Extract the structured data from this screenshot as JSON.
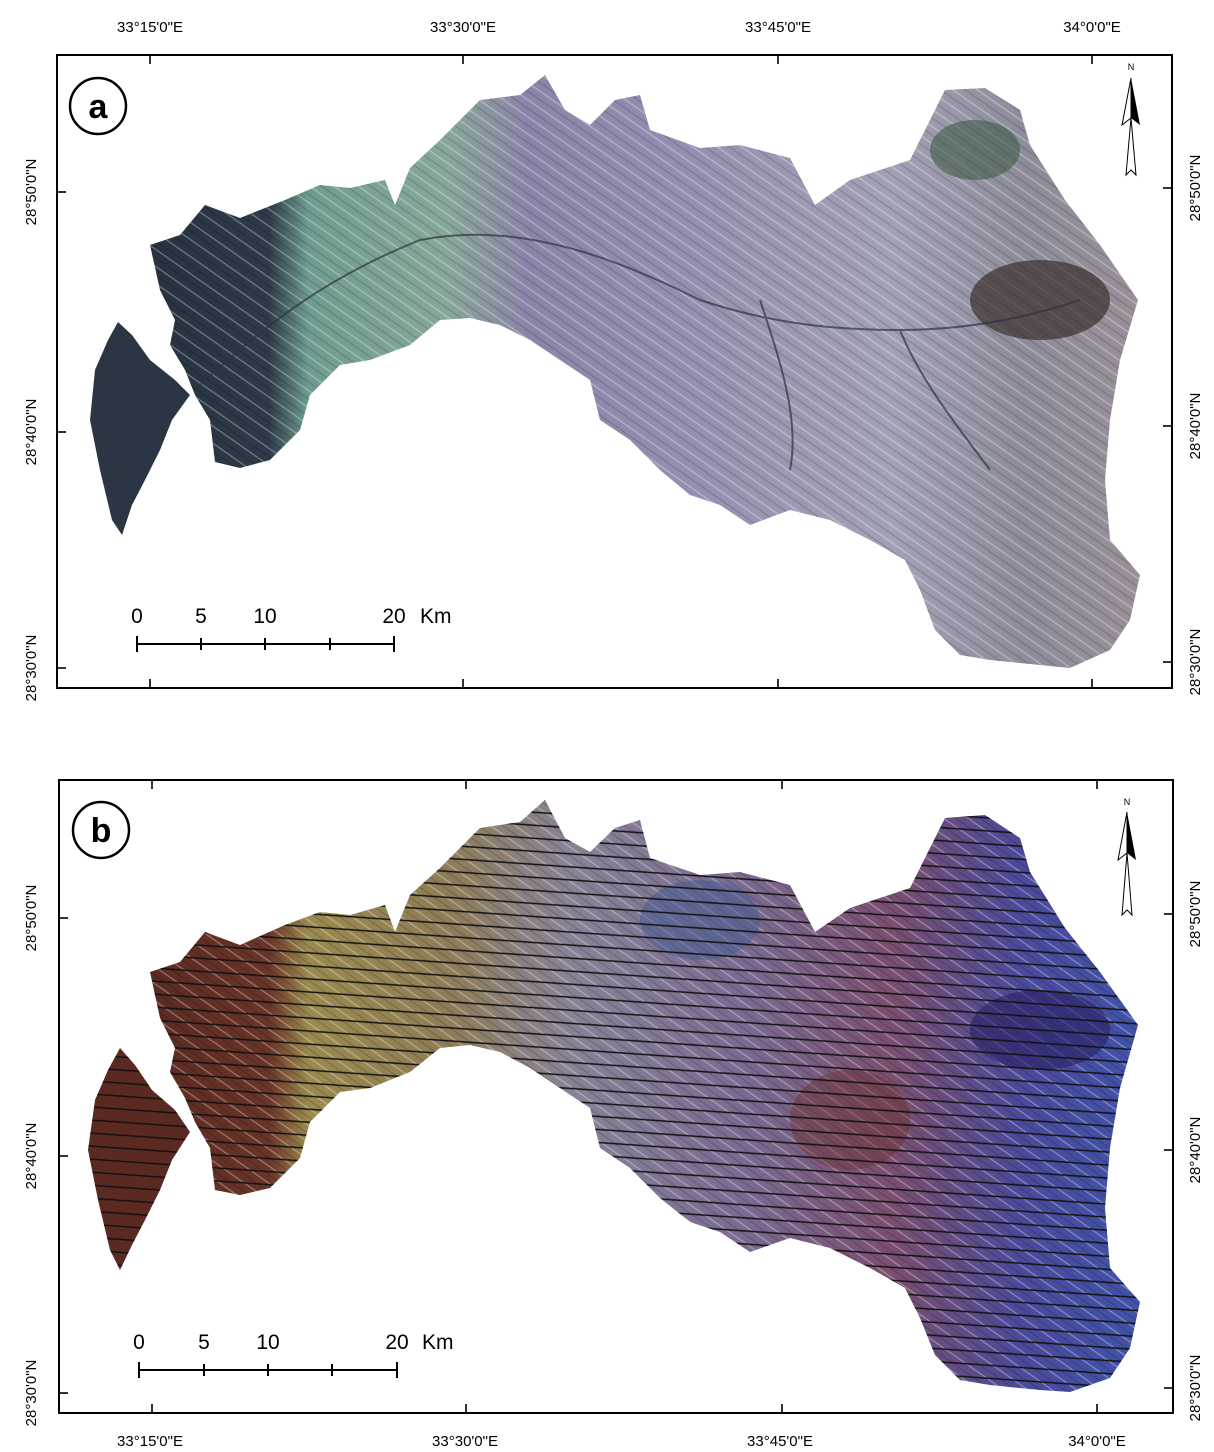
{
  "panels": [
    {
      "id": "a",
      "letter": "a",
      "top_labels": [
        "33°15'0\"E",
        "33°30'0\"E",
        "33°45'0\"E",
        "34°0'0\"E"
      ],
      "left_labels": [
        "28°30'0\"N",
        "28°40'0\"N",
        "28°50'0\"N"
      ],
      "right_labels": [
        "28°30'0\"N",
        "28°40'0\"N",
        "28°50'0\"N"
      ],
      "scale_labels": [
        "0",
        "5",
        "10",
        "20",
        "Km"
      ],
      "north": "N"
    },
    {
      "id": "b",
      "letter": "b",
      "bottom_labels": [
        "33°15'0\"E",
        "33°30'0\"E",
        "33°45'0\"E",
        "34°0'0\"E"
      ],
      "left_labels": [
        "28°30'0\"N",
        "28°40'0\"N",
        "28°50'0\"N"
      ],
      "right_labels": [
        "28°30'0\"N",
        "28°40'0\"N",
        "28°50'0\"N"
      ],
      "scale_labels": [
        "0",
        "5",
        "10",
        "20",
        "Km"
      ],
      "north": "N"
    }
  ],
  "colors": {
    "frame": "#000000",
    "panel_a_west": "#2e3a4a",
    "panel_a_green": "#7fa89a",
    "panel_a_purple": "#8a82a6",
    "panel_a_gray": "#9a9aae",
    "panel_a_dark": "#3b3030",
    "panel_b_brown": "#5a2a22",
    "panel_b_olive": "#8a7a4a",
    "panel_b_purple": "#7a5a8a",
    "panel_b_blue": "#3a4aa0",
    "panel_b_gray": "#8c8ca0"
  }
}
